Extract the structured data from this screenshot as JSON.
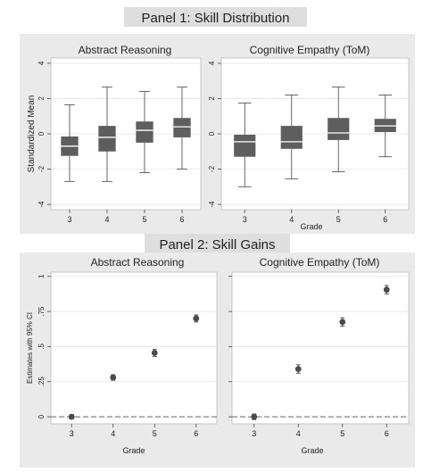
{
  "panel1": {
    "title": "Panel 1: Skill Distribution",
    "ylabel": "Standardized Mean",
    "xlabel": "Grade"
  },
  "panel2": {
    "title": "Panel 2: Skill Gains",
    "ylabel": "Estimates with 95% CI",
    "xlabel": "Grade"
  },
  "colors": {
    "panel_header_bg": "#dedede",
    "plot_bg": "#eaeaea",
    "plot_area_bg": "#ffffff",
    "box_fill": "#5e5e5e",
    "marker": "#4a4a4a",
    "reference_line": "#666666"
  },
  "chart_data": [
    {
      "type": "box",
      "panel": "Panel 1: Skill Distribution",
      "title": "Abstract Reasoning",
      "xlabel": "Grade",
      "ylabel": "Standardized Mean",
      "categories": [
        "3",
        "4",
        "5",
        "6"
      ],
      "ylim": [
        -4.3,
        4.3
      ],
      "yticks": [
        -4,
        -2,
        0,
        2,
        4
      ],
      "yticklabels": [
        "-4",
        "-2",
        "0",
        "2",
        "4"
      ],
      "grid": true,
      "boxes": [
        {
          "min": -2.7,
          "q1": -1.25,
          "median": -0.7,
          "q3": -0.15,
          "max": 1.65
        },
        {
          "min": -2.7,
          "q1": -1.0,
          "median": -0.2,
          "q3": 0.45,
          "max": 2.65
        },
        {
          "min": -2.2,
          "q1": -0.5,
          "median": 0.2,
          "q3": 0.7,
          "max": 2.4
        },
        {
          "min": -2.0,
          "q1": -0.2,
          "median": 0.4,
          "q3": 0.9,
          "max": 2.65
        }
      ]
    },
    {
      "type": "box",
      "panel": "Panel 1: Skill Distribution",
      "title": "Cognitive Empathy (ToM)",
      "xlabel": "Grade",
      "ylabel": "",
      "categories": [
        "3",
        "4",
        "5",
        "6"
      ],
      "ylim": [
        -4.3,
        4.3
      ],
      "yticks": [
        -4,
        -2,
        0,
        2,
        4
      ],
      "yticklabels": [
        "-4",
        "-2",
        "0",
        "2",
        "4"
      ],
      "grid": true,
      "boxes": [
        {
          "min": -3.0,
          "q1": -1.3,
          "median": -0.45,
          "q3": -0.05,
          "max": 1.75
        },
        {
          "min": -2.55,
          "q1": -0.85,
          "median": -0.45,
          "q3": 0.45,
          "max": 2.2
        },
        {
          "min": -2.15,
          "q1": -0.35,
          "median": 0.05,
          "q3": 0.9,
          "max": 2.65
        },
        {
          "min": -1.3,
          "q1": 0.1,
          "median": 0.45,
          "q3": 0.85,
          "max": 2.2
        }
      ]
    },
    {
      "type": "scatter",
      "panel": "Panel 2: Skill Gains",
      "title": "Abstract Reasoning",
      "xlabel": "Grade",
      "ylabel": "Estimates with 95% CI",
      "categories": [
        "3",
        "4",
        "5",
        "6"
      ],
      "ylim": [
        -0.05,
        1.03
      ],
      "yticks": [
        0,
        0.25,
        0.5,
        0.75,
        1
      ],
      "yticklabels": [
        "0",
        ".25",
        ".5",
        ".75",
        "1"
      ],
      "grid": true,
      "reference_line_y": 0,
      "points": [
        {
          "x": "3",
          "y": 0.0,
          "lo": -0.015,
          "hi": 0.015
        },
        {
          "x": "4",
          "y": 0.28,
          "lo": 0.26,
          "hi": 0.3
        },
        {
          "x": "5",
          "y": 0.455,
          "lo": 0.43,
          "hi": 0.48
        },
        {
          "x": "6",
          "y": 0.7,
          "lo": 0.675,
          "hi": 0.725
        }
      ]
    },
    {
      "type": "scatter",
      "panel": "Panel 2: Skill Gains",
      "title": "Cognitive Empathy (ToM)",
      "xlabel": "Grade",
      "ylabel": "",
      "categories": [
        "3",
        "4",
        "5",
        "6"
      ],
      "ylim": [
        -0.05,
        1.03
      ],
      "yticks": [
        0,
        0.25,
        0.5,
        0.75,
        1
      ],
      "yticklabels": [
        "0",
        ".25",
        ".5",
        ".75",
        "1"
      ],
      "grid": true,
      "reference_line_y": 0,
      "points": [
        {
          "x": "3",
          "y": 0.0,
          "lo": -0.02,
          "hi": 0.02
        },
        {
          "x": "4",
          "y": 0.34,
          "lo": 0.31,
          "hi": 0.37
        },
        {
          "x": "5",
          "y": 0.675,
          "lo": 0.645,
          "hi": 0.705
        },
        {
          "x": "6",
          "y": 0.905,
          "lo": 0.875,
          "hi": 0.935
        }
      ]
    }
  ]
}
